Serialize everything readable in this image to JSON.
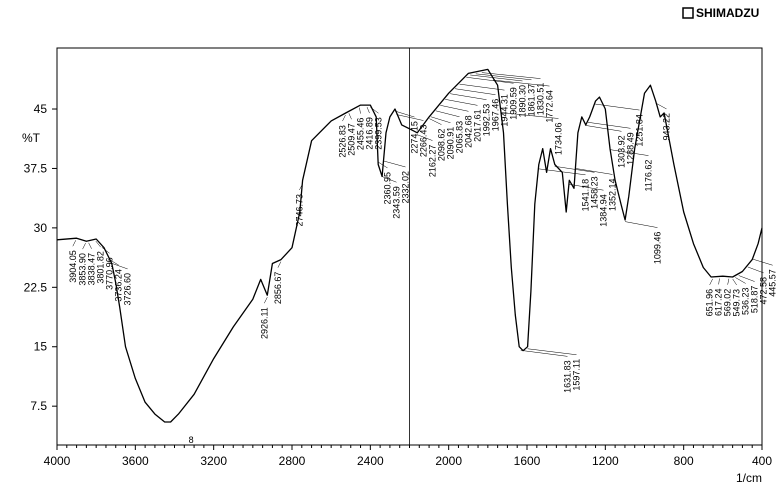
{
  "brand": "SHIMADZU",
  "chart_data": {
    "type": "line",
    "xlabel": "1/cm",
    "ylabel": "%T",
    "xlim": [
      4000,
      400
    ],
    "ylim": [
      2.6,
      52.7
    ],
    "xticks": [
      4000,
      3600,
      3200,
      2800,
      2400,
      2000,
      1600,
      1200,
      800,
      400
    ],
    "yticks": [
      7.5,
      15,
      22.5,
      30,
      37.5,
      45
    ],
    "series": [
      {
        "name": "spectrum",
        "color": "#000000",
        "x": [
          4000,
          3900,
          3850,
          3800,
          3760,
          3720,
          3700,
          3680,
          3650,
          3600,
          3550,
          3500,
          3450,
          3420,
          3380,
          3300,
          3200,
          3100,
          3000,
          2960,
          2926,
          2900,
          2856,
          2800,
          2760,
          2746,
          2700,
          2600,
          2526,
          2450,
          2400,
          2370,
          2360,
          2340,
          2320,
          2300,
          2274,
          2240,
          2200,
          2160,
          2100,
          2000,
          1900,
          1800,
          1750,
          1720,
          1700,
          1680,
          1660,
          1640,
          1620,
          1597,
          1580,
          1560,
          1540,
          1520,
          1500,
          1480,
          1458,
          1420,
          1400,
          1384,
          1360,
          1340,
          1320,
          1300,
          1280,
          1250,
          1230,
          1200,
          1176,
          1150,
          1120,
          1099,
          1080,
          1050,
          1000,
          970,
          943,
          920,
          900,
          850,
          800,
          750,
          700,
          660,
          600,
          550,
          500,
          450,
          420,
          400
        ],
        "values": [
          28.5,
          28.7,
          28.3,
          28.6,
          27.5,
          25.5,
          23,
          20,
          15,
          11,
          8,
          6.5,
          5.5,
          5.5,
          6.5,
          9,
          13.5,
          17.5,
          21,
          23.5,
          21.5,
          25.5,
          26,
          27.5,
          32,
          36,
          41,
          43.5,
          44.5,
          45.5,
          45.5,
          44,
          38,
          36.5,
          42,
          44,
          45,
          43,
          42.5,
          42,
          44,
          47,
          49.5,
          50,
          48,
          42,
          33,
          25,
          19,
          15,
          14.5,
          15,
          22,
          33,
          38,
          40,
          37,
          40,
          38,
          37,
          32,
          36,
          35,
          42,
          44,
          43,
          44,
          46,
          46.5,
          45,
          40,
          36,
          33,
          31,
          34,
          40,
          47,
          48,
          46,
          44,
          44.5,
          38,
          32,
          28,
          25,
          23.8,
          23.9,
          23.8,
          24.5,
          26,
          28,
          30
        ]
      }
    ],
    "peaks": {
      "x": [
        3904.05,
        3853.9,
        3838.47,
        3801.82,
        3770.96,
        3736.24,
        3726.6,
        2926.11,
        2856.67,
        2746.73,
        2526.83,
        2509.47,
        2455.46,
        2416.89,
        2399.53,
        2360.95,
        2343.59,
        2332.02,
        2274.15,
        2266.43,
        2162.27,
        2098.62,
        2090.91,
        2065.83,
        2042.68,
        2017.61,
        1992.53,
        1967.46,
        1944.31,
        1909.59,
        1890.3,
        1861.37,
        1830.51,
        1772.64,
        1734.06,
        1631.83,
        1597.11,
        1541.18,
        1458.23,
        1384.94,
        1352.14,
        1303.92,
        1288.49,
        1251.84,
        1176.62,
        1099.46,
        943.22,
        651.96,
        617.24,
        569.02,
        549.73,
        536.23,
        518.87,
        472.58,
        445.57
      ],
      "labels": [
        "3904.05",
        "3853.90",
        "3838.47",
        "3801.82",
        "3770.96",
        "3736.24",
        "3726.60",
        "2926.11",
        "2856.67",
        "2746.73",
        "2526.83",
        "2509.47",
        "2455.46",
        "2416.89",
        "2399.53",
        "2360.95",
        "2343.59",
        "2332.02",
        "2274.15",
        "2266.43",
        "2162.27",
        "2098.62",
        "2090.91",
        "2065.83",
        "2042.68",
        "2017.61",
        "1992.53",
        "1967.46",
        "1944.31",
        "1909.59",
        "1890.30",
        "1861.37",
        "1830.51",
        "1772.64",
        "1734.06",
        "1631.83",
        "1597.11",
        "1541.18",
        "1458.23",
        "1384.94",
        "1352.14",
        "1303.92",
        "1288.49",
        "1251.84",
        "1176.62",
        "1099.46",
        "943.22",
        "651.96",
        "617.24",
        "569.02",
        "549.73",
        "536.23",
        "518.87",
        "472.58",
        "445.57"
      ]
    },
    "annotation": "8"
  }
}
